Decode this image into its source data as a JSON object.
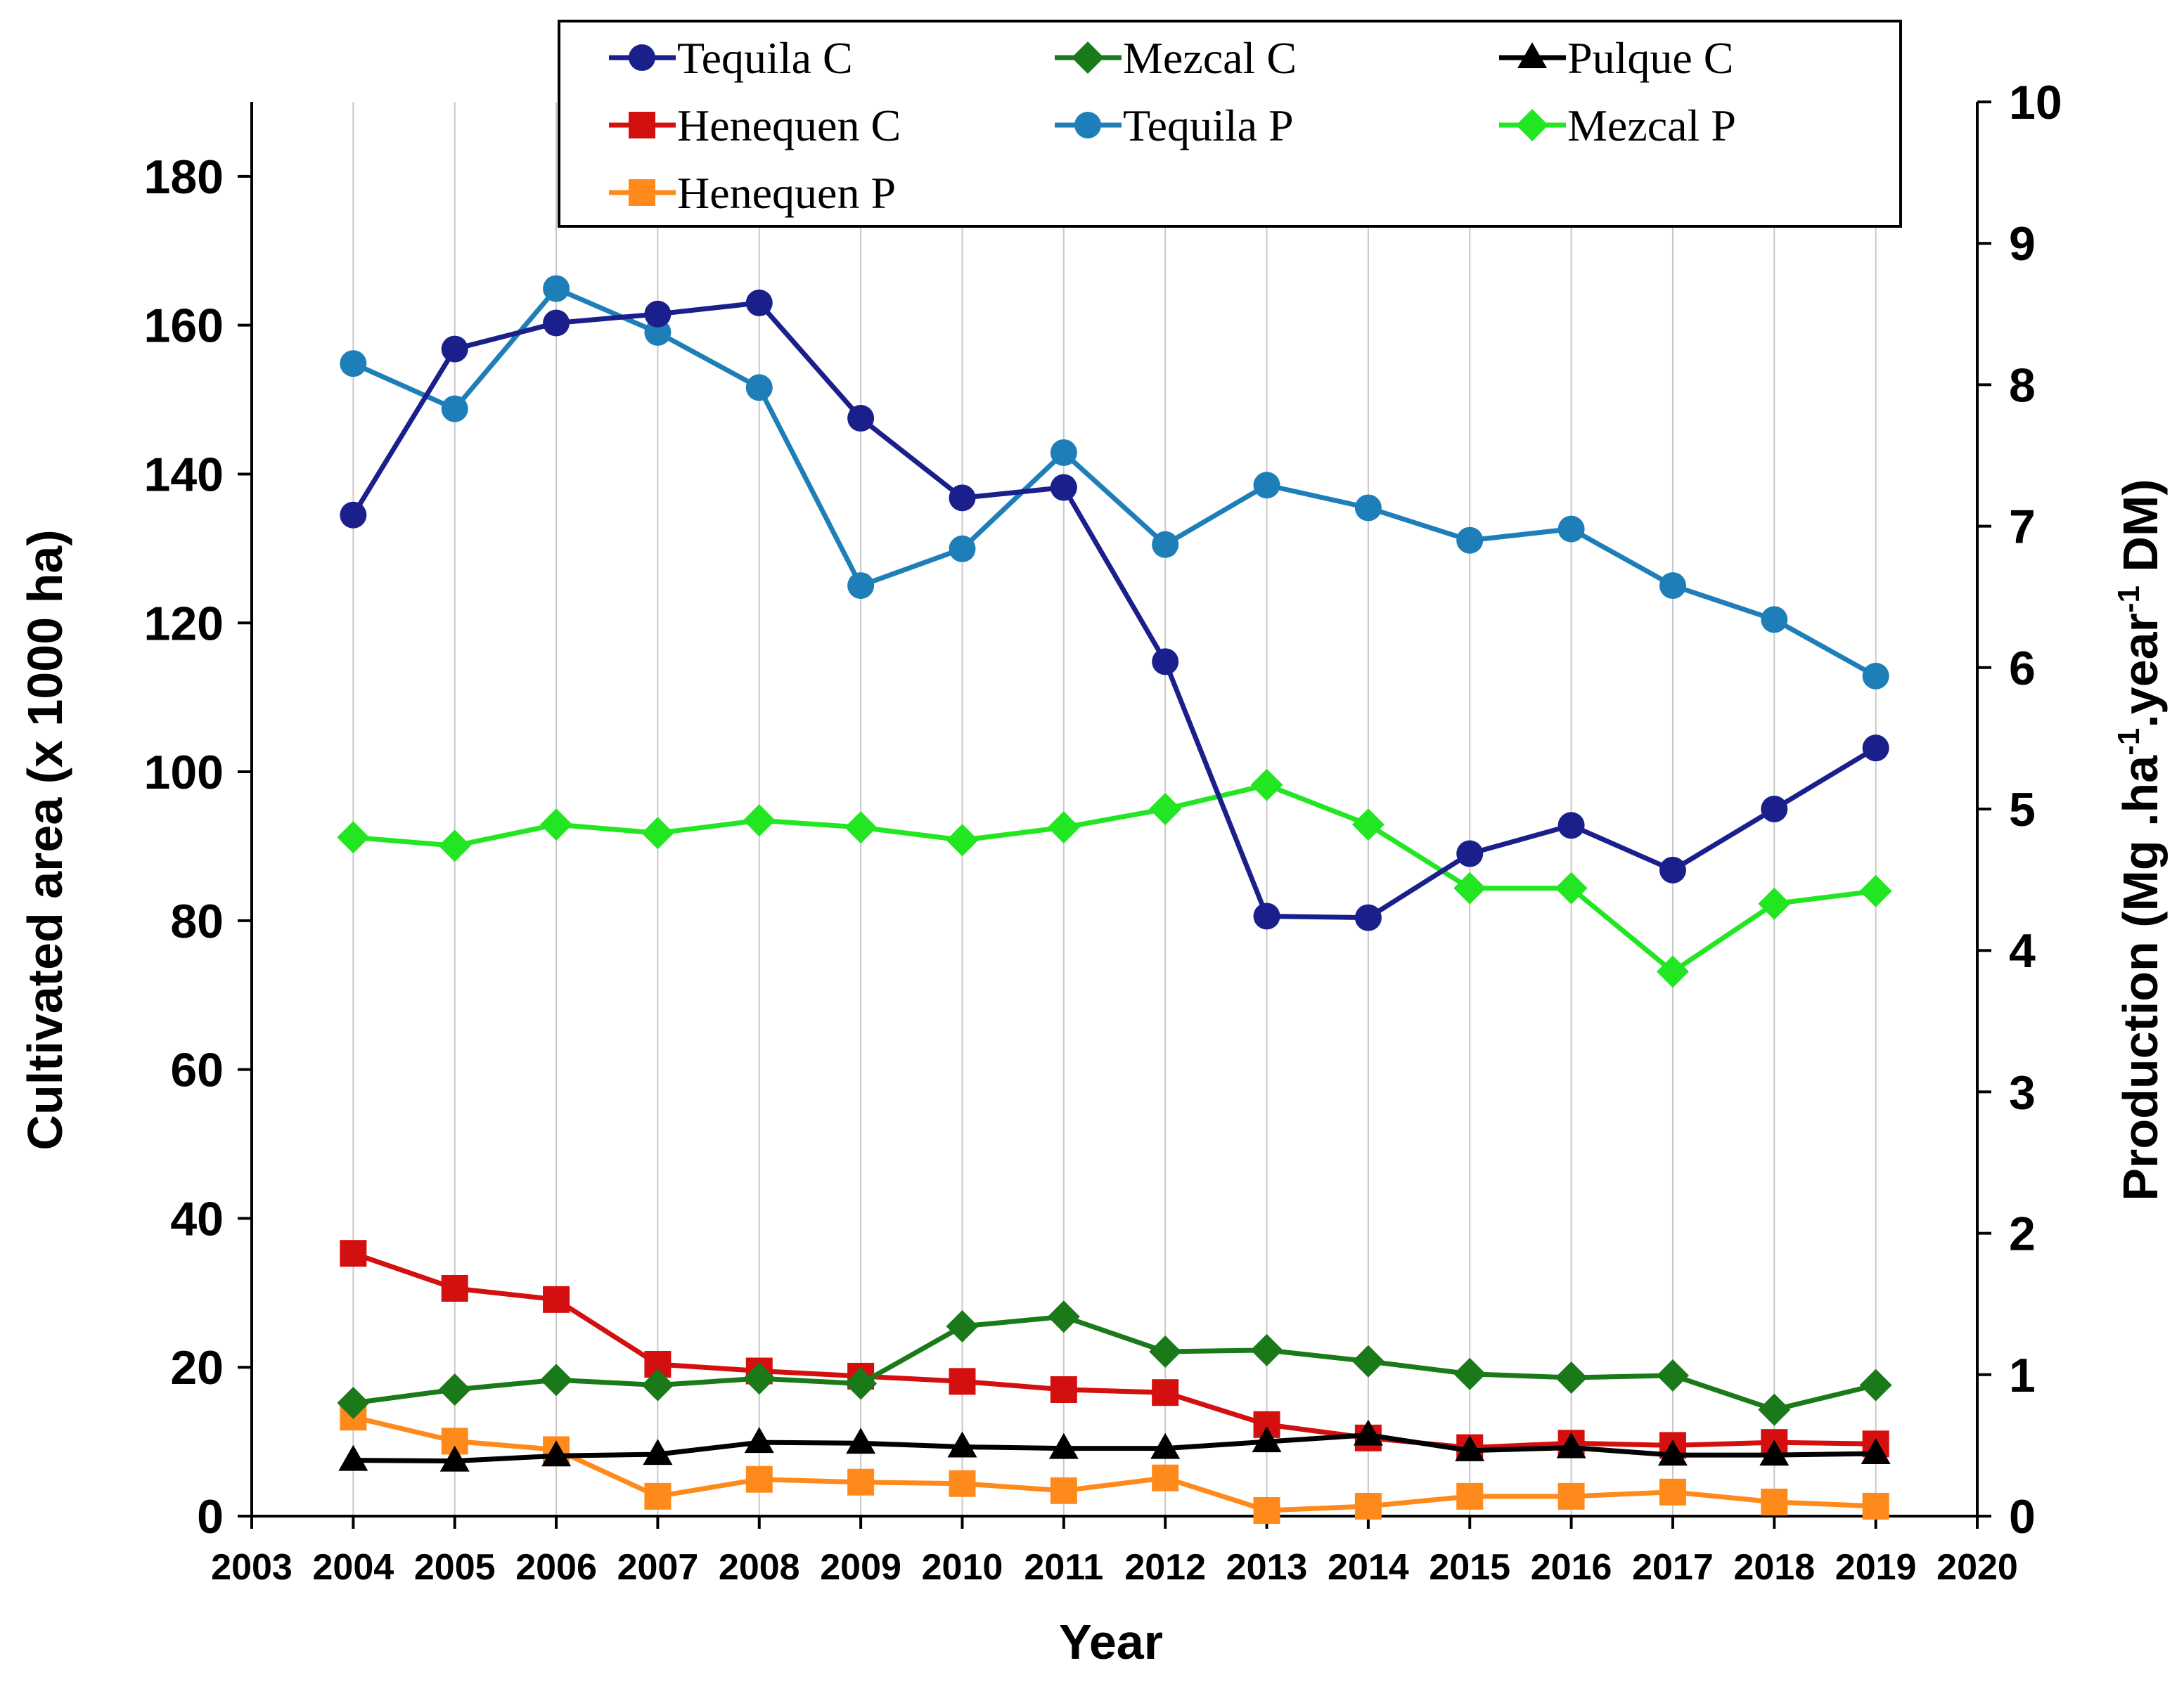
{
  "chart_data": {
    "type": "line",
    "title": "",
    "xlabel": "Year",
    "ylabel_left": "Cultivated area (x 1000 ha)",
    "ylabel_right": "Production (Mg .ha-1.year-1 DM)",
    "ylabel_right_parts": {
      "a": "Production (Mg .ha",
      "sup1": "-1",
      "b": ".year",
      "sup2": "-1",
      "c": " DM)"
    },
    "xlim": [
      2003,
      2020
    ],
    "ylim_left": [
      0,
      190
    ],
    "ylim_right": [
      0,
      10
    ],
    "x_ticks": [
      2003,
      2004,
      2005,
      2006,
      2007,
      2008,
      2009,
      2010,
      2011,
      2012,
      2013,
      2014,
      2015,
      2016,
      2017,
      2018,
      2019,
      2020
    ],
    "y_left_ticks": [
      0,
      20,
      40,
      60,
      80,
      100,
      120,
      140,
      160,
      180
    ],
    "y_right_ticks": [
      0,
      1,
      2,
      3,
      4,
      5,
      6,
      7,
      8,
      9,
      10
    ],
    "grid": "vertical",
    "legend_position": "top-center",
    "x": [
      2004,
      2005,
      2006,
      2007,
      2008,
      2009,
      2010,
      2011,
      2012,
      2013,
      2014,
      2015,
      2016,
      2017,
      2018,
      2019
    ],
    "series": [
      {
        "name": "Tequila C",
        "axis": "left",
        "marker": "circle",
        "color": "#1a1f8c",
        "values": [
          134.5,
          156.8,
          160.3,
          161.5,
          163.0,
          147.5,
          136.8,
          138.2,
          114.8,
          80.6,
          80.4,
          89.0,
          92.8,
          86.8,
          95.0,
          103.2
        ]
      },
      {
        "name": "Mezcal C",
        "axis": "left",
        "marker": "diamond",
        "color": "#1a7a1a",
        "values": [
          15.2,
          17.0,
          18.3,
          17.6,
          18.5,
          17.8,
          25.5,
          26.8,
          22.1,
          22.3,
          20.8,
          19.1,
          18.6,
          18.9,
          14.3,
          17.6
        ]
      },
      {
        "name": "Pulque C",
        "axis": "left",
        "marker": "triangle",
        "color": "#000000",
        "values": [
          7.5,
          7.4,
          8.1,
          8.3,
          9.9,
          9.8,
          9.3,
          9.1,
          9.1,
          10.0,
          10.9,
          8.8,
          9.2,
          8.2,
          8.2,
          8.4
        ]
      },
      {
        "name": "Henequen C",
        "axis": "left",
        "marker": "square",
        "color": "#d40f0f",
        "values": [
          35.3,
          30.6,
          29.1,
          20.4,
          19.5,
          18.8,
          18.1,
          17.0,
          16.6,
          12.3,
          10.5,
          9.2,
          9.8,
          9.5,
          9.9,
          9.7
        ]
      },
      {
        "name": "Tequila P",
        "axis": "right",
        "marker": "circle",
        "color": "#1e7fb8",
        "values": [
          8.15,
          7.83,
          8.68,
          8.37,
          7.98,
          6.58,
          6.84,
          7.52,
          6.87,
          7.29,
          7.13,
          6.9,
          6.98,
          6.58,
          6.34,
          5.94
        ]
      },
      {
        "name": "Mezcal P",
        "axis": "right",
        "marker": "diamond",
        "color": "#22e622",
        "values": [
          4.8,
          4.74,
          4.89,
          4.83,
          4.92,
          4.87,
          4.78,
          4.87,
          5.0,
          5.17,
          4.89,
          4.44,
          4.44,
          3.85,
          4.33,
          4.42
        ]
      },
      {
        "name": "Henequen P",
        "axis": "right",
        "marker": "square",
        "color": "#ff8a1c",
        "values": [
          0.7,
          0.53,
          0.47,
          0.14,
          0.26,
          0.24,
          0.23,
          0.18,
          0.27,
          0.04,
          0.07,
          0.14,
          0.14,
          0.17,
          0.1,
          0.07
        ]
      }
    ],
    "legend": [
      {
        "label": "Tequila C",
        "marker": "circle",
        "color": "#1a1f8c"
      },
      {
        "label": "Mezcal C",
        "marker": "diamond",
        "color": "#1a7a1a"
      },
      {
        "label": "Pulque C",
        "marker": "triangle",
        "color": "#000000"
      },
      {
        "label": "Henequen C",
        "marker": "square",
        "color": "#d40f0f"
      },
      {
        "label": "Tequila P",
        "marker": "circle",
        "color": "#1e7fb8"
      },
      {
        "label": "Mezcal P",
        "marker": "diamond",
        "color": "#22e622"
      },
      {
        "label": "Henequen P",
        "marker": "square",
        "color": "#ff8a1c"
      }
    ]
  }
}
